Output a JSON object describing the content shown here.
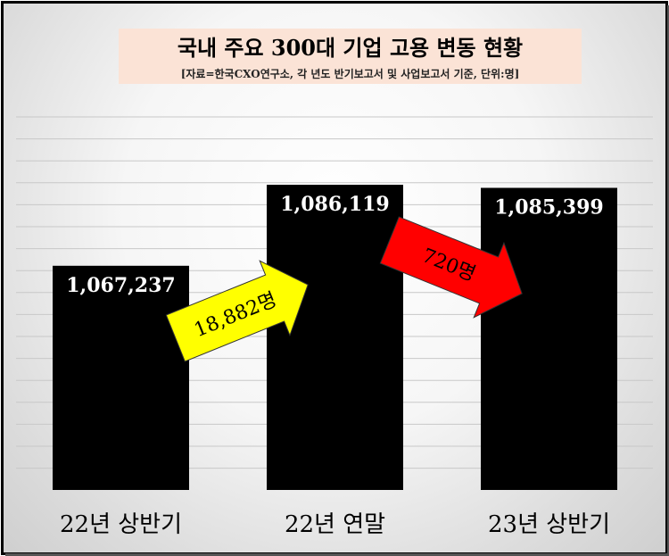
{
  "colors": {
    "bar": "#000000",
    "up_arrow": "#ffff00",
    "down_arrow": "#ff0000",
    "title_bg": "#fbe3d6",
    "bar_label": "#ffffff"
  },
  "chart_data": {
    "type": "bar",
    "title": "국내 주요 300대 기업 고용 변동 현황",
    "subtitle": "[자료=한국CXO연구소, 각 년도 반기보고서 및 사업보고서 기준, 단위:명]",
    "categories": [
      "22년 상반기",
      "22년 연말",
      "23년 상반기"
    ],
    "values": [
      1067237,
      1086119,
      1085399
    ],
    "value_labels": [
      "1,067,237",
      "1,086,119",
      "1,085,399"
    ],
    "xlabel": "",
    "ylabel": "",
    "grid": true,
    "annotations": [
      {
        "text": "18,882명",
        "direction": "up",
        "from": "22년 상반기",
        "to": "22년 연말"
      },
      {
        "text": "720명",
        "direction": "down",
        "from": "22년 연말",
        "to": "23년 상반기"
      }
    ]
  }
}
